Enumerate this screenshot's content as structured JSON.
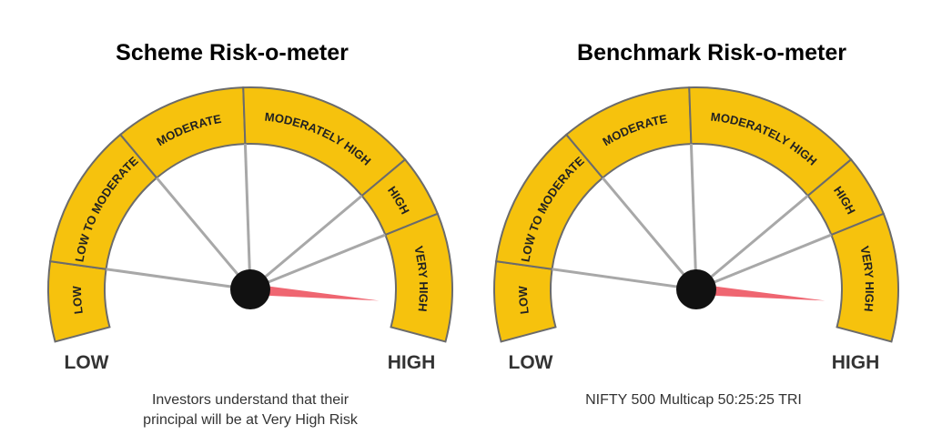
{
  "meters": [
    {
      "title": "Scheme Risk-o-meter",
      "segments": [
        "LOW",
        "LOW TO MODERATE",
        "MODERATE",
        "MODERATELY HIGH",
        "HIGH",
        "VERY HIGH"
      ],
      "low_label": "LOW",
      "high_label": "HIGH",
      "caption": [
        "Investors understand that their",
        "principal will be at Very High Risk"
      ]
    },
    {
      "title": "Benchmark Risk-o-meter",
      "segments": [
        "LOW",
        "LOW TO MODERATE",
        "MODERATE",
        "MODERATELY HIGH",
        "HIGH",
        "VERY HIGH"
      ],
      "low_label": "LOW",
      "high_label": "HIGH",
      "caption": [
        "NIFTY 500 Multicap 50:25:25 TRI"
      ]
    }
  ]
}
